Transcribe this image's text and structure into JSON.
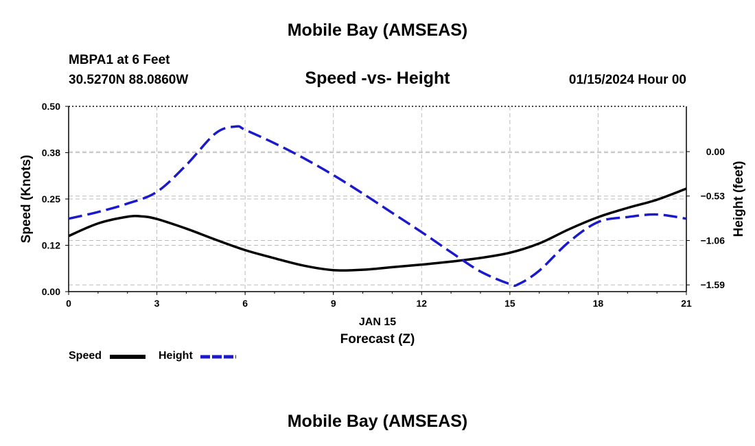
{
  "page": {
    "title": "Mobile Bay (AMSEAS)",
    "footer_title": "Mobile Bay (AMSEAS)",
    "station": "MBPA1 at 6 Feet",
    "coords": "30.5270N  88.0860W",
    "chart_title": "Speed -vs- Height",
    "timestamp": "01/15/2024 Hour 00"
  },
  "legend": {
    "speed_label": "Speed",
    "height_label": "Height"
  },
  "chart_data": {
    "type": "line",
    "title": "Speed -vs- Height",
    "xlabel": "Forecast (Z)",
    "xlabel_date": "JAN 15",
    "ylabel_left": "Speed (Knots)",
    "ylabel_right": "Height (feet)",
    "x_ticks": [
      0,
      3,
      6,
      9,
      12,
      15,
      18,
      21
    ],
    "x_tick_labels": [
      "0",
      "3",
      "6",
      "9",
      "12",
      "15",
      "18",
      "21"
    ],
    "xlim": [
      0,
      21
    ],
    "y_left_ticks": [
      0.0,
      0.125,
      0.25,
      0.375,
      0.5
    ],
    "y_left_tick_labels": [
      "0.00",
      "0.12",
      "0.25",
      "0.38",
      "0.50"
    ],
    "ylim_left": [
      0,
      0.5
    ],
    "y_right_ticks": [
      0.0,
      -0.53,
      -1.06,
      -1.59
    ],
    "y_right_tick_labels": [
      "0.00",
      "−0.53",
      "−1.06",
      "−1.59"
    ],
    "ylim_right": [
      -1.67,
      0.54
    ],
    "grid": true,
    "colors": {
      "speed": "#000000",
      "height": "#1a1acc",
      "grid": "#bbbbbb"
    },
    "series": [
      {
        "name": "Speed",
        "axis": "left",
        "style": "solid",
        "x": [
          0,
          1,
          2,
          2.5,
          3,
          4,
          5,
          6,
          7,
          8,
          9,
          10,
          11,
          12,
          13,
          14,
          15,
          16,
          17,
          18,
          19,
          20,
          21
        ],
        "values": [
          0.15,
          0.184,
          0.202,
          0.203,
          0.196,
          0.17,
          0.14,
          0.112,
          0.09,
          0.07,
          0.058,
          0.059,
          0.066,
          0.073,
          0.081,
          0.091,
          0.105,
          0.13,
          0.168,
          0.201,
          0.226,
          0.248,
          0.278
        ]
      },
      {
        "name": "Height",
        "axis": "right",
        "style": "dashed",
        "x": [
          0,
          1,
          2,
          3,
          4,
          5,
          5.7,
          6,
          7,
          8,
          9,
          10,
          11,
          12,
          13,
          14,
          15,
          15.3,
          16,
          17,
          18,
          19,
          20,
          21
        ],
        "values": [
          -0.8,
          -0.72,
          -0.62,
          -0.48,
          -0.16,
          0.22,
          0.3,
          0.26,
          0.1,
          -0.08,
          -0.28,
          -0.5,
          -0.73,
          -0.96,
          -1.2,
          -1.43,
          -1.58,
          -1.58,
          -1.42,
          -1.08,
          -0.84,
          -0.78,
          -0.75,
          -0.8
        ]
      }
    ]
  }
}
